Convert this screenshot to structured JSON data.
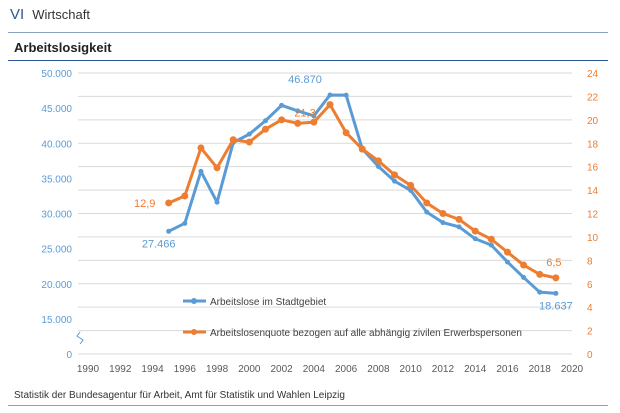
{
  "header": {
    "section_number": "VI",
    "section_title": "Wirtschaft"
  },
  "title": "Arbeitslosigkeit",
  "source": "Statistik der Bundesagentur für Arbeit, Amt für Statistik und Wahlen Leipzig",
  "chart_data": {
    "type": "line",
    "title": "Arbeitslosigkeit",
    "x": [
      1995,
      1996,
      1997,
      1998,
      1999,
      2000,
      2001,
      2002,
      2003,
      2004,
      2005,
      2006,
      2007,
      2008,
      2009,
      2010,
      2011,
      2012,
      2013,
      2014,
      2015,
      2016,
      2017,
      2018,
      2019
    ],
    "xlim": [
      1990,
      2020
    ],
    "x_ticks": [
      "1990",
      "1992",
      "1994",
      "1996",
      "1998",
      "2000",
      "2002",
      "2004",
      "2006",
      "2008",
      "2010",
      "2012",
      "2014",
      "2016",
      "2018",
      "2020"
    ],
    "y_left_ticks": [
      "0",
      "15.000",
      "20.000",
      "25.000",
      "30.000",
      "35.000",
      "40.000",
      "45.000",
      "50.000"
    ],
    "y_left_axis_break": true,
    "y_right_ticks": [
      "0",
      "2",
      "4",
      "6",
      "8",
      "10",
      "12",
      "14",
      "16",
      "18",
      "20",
      "22",
      "24"
    ],
    "ylim_right": [
      0,
      24
    ],
    "grid": true,
    "legend_placement": "bottom-left",
    "series": [
      {
        "name": "Arbeitslose im Stadtgebiet",
        "axis": "left",
        "color": "#5b9bd5",
        "values": [
          27466,
          28600,
          36000,
          31600,
          40100,
          41300,
          43200,
          45400,
          44600,
          43900,
          46870,
          46850,
          39200,
          36700,
          34600,
          33300,
          30200,
          28700,
          28100,
          26400,
          25500,
          23100,
          20900,
          18800,
          18637
        ]
      },
      {
        "name": "Arbeitslosenquote bezogen auf alle abhängig zivilen Erwerbspersonen",
        "axis": "right",
        "color": "#ed7d31",
        "values": [
          12.9,
          13.5,
          17.6,
          15.9,
          18.3,
          18.1,
          19.2,
          20.0,
          19.7,
          19.8,
          21.3,
          18.9,
          17.5,
          16.5,
          15.3,
          14.4,
          12.9,
          12.0,
          11.5,
          10.5,
          9.8,
          8.7,
          7.6,
          6.8,
          6.5
        ]
      }
    ],
    "annotations": [
      {
        "series": 0,
        "x": 1995,
        "text": "27.466"
      },
      {
        "series": 0,
        "x": 2005,
        "text": "46.870"
      },
      {
        "series": 0,
        "x": 2019,
        "text": "18.637"
      },
      {
        "series": 1,
        "x": 1995,
        "text": "12,9"
      },
      {
        "series": 1,
        "x": 2005,
        "text": "21,3"
      },
      {
        "series": 1,
        "x": 2019,
        "text": "6,5"
      }
    ]
  }
}
